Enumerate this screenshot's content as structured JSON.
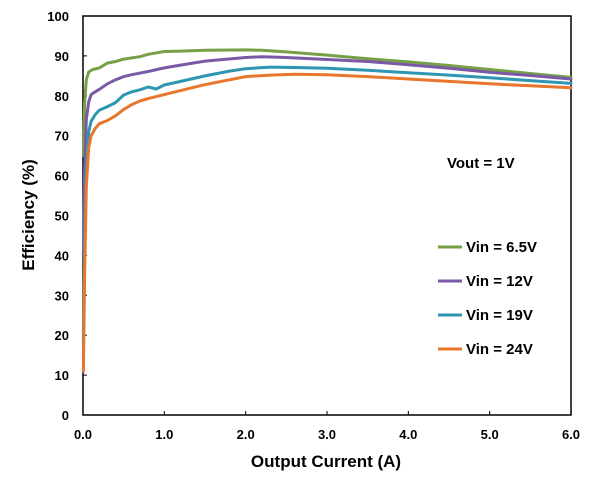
{
  "chart_data": {
    "type": "line",
    "title": "",
    "xlabel": "Output Current (A)",
    "ylabel": "Efficiency (%)",
    "xlim": [
      0,
      6
    ],
    "ylim": [
      0,
      100
    ],
    "x_ticks": [
      "0.0",
      "1.0",
      "2.0",
      "3.0",
      "4.0",
      "5.0",
      "6.0"
    ],
    "y_ticks": [
      "0",
      "10",
      "20",
      "30",
      "40",
      "50",
      "60",
      "70",
      "80",
      "90",
      "100"
    ],
    "grid": "none",
    "legend_position": "bottom-right",
    "annotation": "Vout = 1V",
    "series": [
      {
        "name": "Vin = 6.5V",
        "color": "#77a046",
        "points": [
          [
            0.005,
            65
          ],
          [
            0.02,
            78
          ],
          [
            0.04,
            84
          ],
          [
            0.07,
            86
          ],
          [
            0.12,
            86.6
          ],
          [
            0.2,
            87
          ],
          [
            0.3,
            88.2
          ],
          [
            0.4,
            88.6
          ],
          [
            0.5,
            89.2
          ],
          [
            0.6,
            89.5
          ],
          [
            0.7,
            89.8
          ],
          [
            0.8,
            90.4
          ],
          [
            1.0,
            91.1
          ],
          [
            1.2,
            91.2
          ],
          [
            1.5,
            91.4
          ],
          [
            2.0,
            91.5
          ],
          [
            2.2,
            91.4
          ],
          [
            2.5,
            91
          ],
          [
            3.0,
            90.2
          ],
          [
            3.5,
            89.3
          ],
          [
            4.0,
            88.5
          ],
          [
            4.5,
            87.6
          ],
          [
            5.0,
            86.6
          ],
          [
            5.5,
            85.6
          ],
          [
            6.0,
            84.6
          ]
        ]
      },
      {
        "name": "Vin = 12V",
        "color": "#7a5aa6",
        "points": [
          [
            0.005,
            40
          ],
          [
            0.02,
            62
          ],
          [
            0.04,
            74
          ],
          [
            0.07,
            78.5
          ],
          [
            0.1,
            80.3
          ],
          [
            0.15,
            81
          ],
          [
            0.2,
            81.6
          ],
          [
            0.3,
            83
          ],
          [
            0.4,
            84
          ],
          [
            0.5,
            84.8
          ],
          [
            0.6,
            85.3
          ],
          [
            0.8,
            86.1
          ],
          [
            1.0,
            87
          ],
          [
            1.2,
            87.7
          ],
          [
            1.5,
            88.7
          ],
          [
            2.0,
            89.6
          ],
          [
            2.2,
            89.8
          ],
          [
            2.5,
            89.6
          ],
          [
            3.0,
            89.1
          ],
          [
            3.5,
            88.6
          ],
          [
            4.0,
            87.8
          ],
          [
            4.5,
            86.9
          ],
          [
            5.0,
            85.9
          ],
          [
            5.5,
            85.1
          ],
          [
            6.0,
            84.2
          ]
        ]
      },
      {
        "name": "Vin = 19V",
        "color": "#2e96b2",
        "points": [
          [
            0.005,
            18
          ],
          [
            0.02,
            45
          ],
          [
            0.04,
            62
          ],
          [
            0.07,
            71
          ],
          [
            0.1,
            73.6
          ],
          [
            0.15,
            75.3
          ],
          [
            0.2,
            76.4
          ],
          [
            0.3,
            77.3
          ],
          [
            0.4,
            78.3
          ],
          [
            0.5,
            80.2
          ],
          [
            0.6,
            81
          ],
          [
            0.7,
            81.5
          ],
          [
            0.8,
            82.2
          ],
          [
            0.9,
            81.7
          ],
          [
            1.0,
            82.7
          ],
          [
            1.2,
            83.6
          ],
          [
            1.5,
            85
          ],
          [
            1.8,
            86.2
          ],
          [
            2.0,
            86.8
          ],
          [
            2.3,
            87.2
          ],
          [
            2.6,
            87.1
          ],
          [
            3.0,
            86.9
          ],
          [
            3.5,
            86.4
          ],
          [
            4.0,
            85.8
          ],
          [
            4.5,
            85.2
          ],
          [
            5.0,
            84.5
          ],
          [
            5.5,
            83.8
          ],
          [
            6.0,
            83.1
          ]
        ]
      },
      {
        "name": "Vin = 24V",
        "color": "#e8762d",
        "points": [
          [
            0.005,
            11
          ],
          [
            0.02,
            35
          ],
          [
            0.04,
            57
          ],
          [
            0.07,
            67
          ],
          [
            0.1,
            70
          ],
          [
            0.15,
            71.8
          ],
          [
            0.2,
            73
          ],
          [
            0.3,
            73.8
          ],
          [
            0.4,
            75
          ],
          [
            0.5,
            76.6
          ],
          [
            0.6,
            77.8
          ],
          [
            0.7,
            78.7
          ],
          [
            0.8,
            79.3
          ],
          [
            0.9,
            79.8
          ],
          [
            1.0,
            80.3
          ],
          [
            1.2,
            81.3
          ],
          [
            1.5,
            82.8
          ],
          [
            1.8,
            84
          ],
          [
            2.0,
            84.8
          ],
          [
            2.3,
            85.2
          ],
          [
            2.6,
            85.4
          ],
          [
            3.0,
            85.3
          ],
          [
            3.5,
            84.8
          ],
          [
            4.0,
            84.2
          ],
          [
            4.5,
            83.6
          ],
          [
            5.0,
            83
          ],
          [
            5.5,
            82.5
          ],
          [
            6.0,
            82
          ]
        ]
      }
    ]
  }
}
